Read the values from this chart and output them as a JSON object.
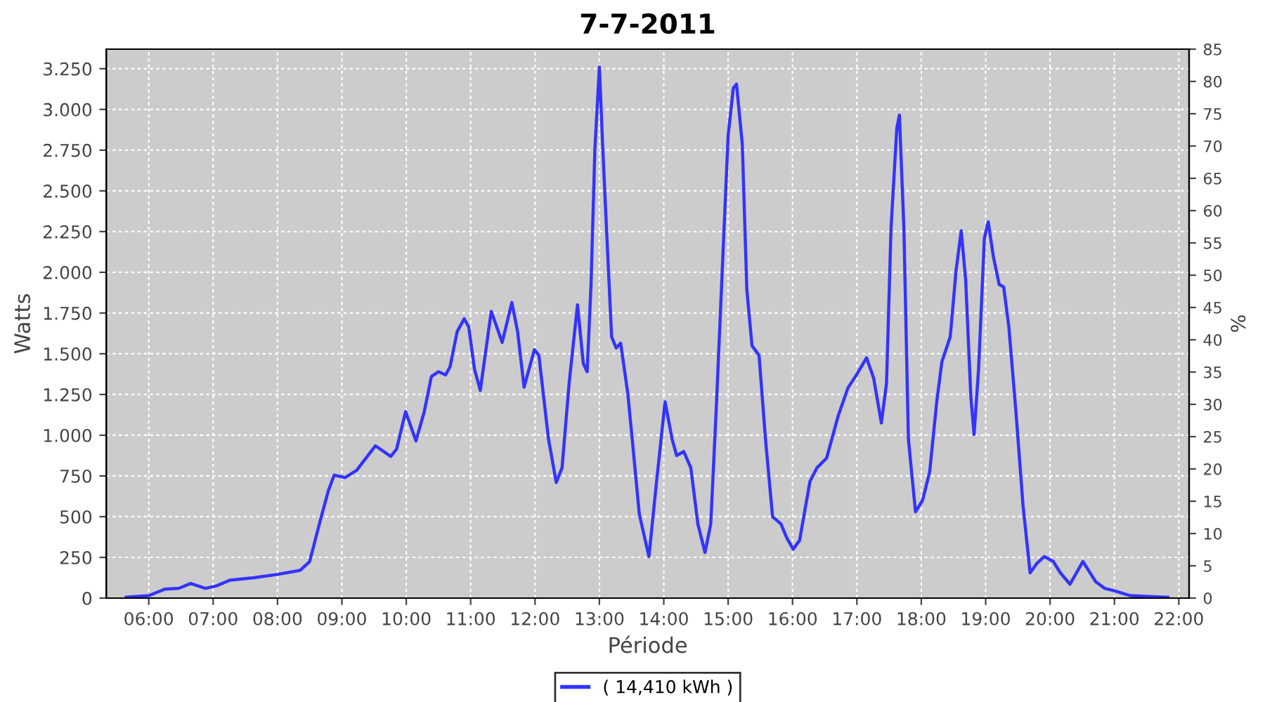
{
  "chart_data": {
    "type": "line",
    "title": "7-7-2011",
    "xlabel": "Période",
    "ylabel": "Watts",
    "y2label": "%",
    "xlim": [
      5.34,
      22.16
    ],
    "xticks": [
      {
        "value": 6,
        "label": "06:00"
      },
      {
        "value": 7,
        "label": "07:00"
      },
      {
        "value": 8,
        "label": "08:00"
      },
      {
        "value": 9,
        "label": "09:00"
      },
      {
        "value": 10,
        "label": "10:00"
      },
      {
        "value": 11,
        "label": "11:00"
      },
      {
        "value": 12,
        "label": "12:00"
      },
      {
        "value": 13,
        "label": "13:00"
      },
      {
        "value": 14,
        "label": "14:00"
      },
      {
        "value": 15,
        "label": "15:00"
      },
      {
        "value": 16,
        "label": "16:00"
      },
      {
        "value": 17,
        "label": "17:00"
      },
      {
        "value": 18,
        "label": "18:00"
      },
      {
        "value": 19,
        "label": "19:00"
      },
      {
        "value": 20,
        "label": "20:00"
      },
      {
        "value": 21,
        "label": "21:00"
      },
      {
        "value": 22,
        "label": "22:00"
      }
    ],
    "ylim": [
      0,
      3370
    ],
    "yticks": [
      0,
      250,
      500,
      750,
      {
        "value": 1000,
        "label": "1.000"
      },
      {
        "value": 1250,
        "label": "1.250"
      },
      {
        "value": 1500,
        "label": "1.500"
      },
      {
        "value": 1750,
        "label": "1.750"
      },
      {
        "value": 2000,
        "label": "2.000"
      },
      {
        "value": 2250,
        "label": "2.250"
      },
      {
        "value": 2500,
        "label": "2.500"
      },
      {
        "value": 2750,
        "label": "2.750"
      },
      {
        "value": 3000,
        "label": "3.000"
      },
      {
        "value": 3250,
        "label": "3.250"
      }
    ],
    "y2lim": [
      0,
      85
    ],
    "y2ticks": [
      0,
      5,
      10,
      15,
      20,
      25,
      30,
      35,
      40,
      45,
      50,
      55,
      60,
      65,
      70,
      75,
      80,
      85
    ],
    "grid": true,
    "legend": "bottom",
    "series": [
      {
        "name": "( 14,410 kWh )",
        "color": "#3333ff",
        "x": [
          5.65,
          6.0,
          6.25,
          6.47,
          6.65,
          6.88,
          7.05,
          7.26,
          7.63,
          7.99,
          8.35,
          8.5,
          8.65,
          8.79,
          8.88,
          9.05,
          9.23,
          9.52,
          9.76,
          9.85,
          9.99,
          10.15,
          10.28,
          10.39,
          10.5,
          10.61,
          10.68,
          10.79,
          10.9,
          10.97,
          11.06,
          11.15,
          11.32,
          11.49,
          11.64,
          11.73,
          11.83,
          11.99,
          12.06,
          12.21,
          12.33,
          12.42,
          12.53,
          12.66,
          12.75,
          12.81,
          12.87,
          12.93,
          13.0,
          13.05,
          13.11,
          13.19,
          13.26,
          13.33,
          13.44,
          13.51,
          13.62,
          13.77,
          13.88,
          14.02,
          14.13,
          14.2,
          14.31,
          14.42,
          14.53,
          14.64,
          14.73,
          14.82,
          14.93,
          15.0,
          15.08,
          15.13,
          15.22,
          15.29,
          15.37,
          15.48,
          15.58,
          15.69,
          15.82,
          15.91,
          16.01,
          16.11,
          16.27,
          16.38,
          16.53,
          16.71,
          16.86,
          17.0,
          17.15,
          17.26,
          17.38,
          17.46,
          17.53,
          17.62,
          17.66,
          17.73,
          17.8,
          17.91,
          18.02,
          18.13,
          18.24,
          18.32,
          18.45,
          18.54,
          18.62,
          18.69,
          18.77,
          18.82,
          18.89,
          18.98,
          19.04,
          19.12,
          19.21,
          19.28,
          19.36,
          19.47,
          19.58,
          19.69,
          19.8,
          19.91,
          20.05,
          20.16,
          20.31,
          20.51,
          20.71,
          20.85,
          21.0,
          21.25,
          21.54,
          21.83
        ],
        "values": [
          5,
          15,
          55,
          60,
          90,
          60,
          75,
          110,
          125,
          145,
          170,
          225,
          455,
          660,
          755,
          740,
          785,
          935,
          870,
          915,
          1145,
          965,
          1145,
          1360,
          1390,
          1370,
          1420,
          1635,
          1715,
          1665,
          1405,
          1275,
          1760,
          1570,
          1815,
          1635,
          1295,
          1525,
          1490,
          975,
          710,
          800,
          1320,
          1800,
          1440,
          1390,
          1925,
          2755,
          3260,
          2785,
          2270,
          1605,
          1535,
          1565,
          1260,
          975,
          515,
          255,
          685,
          1205,
          975,
          875,
          900,
          800,
          455,
          280,
          455,
          1205,
          2210,
          2840,
          3130,
          3155,
          2785,
          1895,
          1550,
          1490,
          975,
          500,
          455,
          370,
          300,
          355,
          715,
          800,
          860,
          1120,
          1290,
          1375,
          1475,
          1350,
          1075,
          1320,
          2270,
          2885,
          2965,
          2270,
          975,
          530,
          600,
          775,
          1205,
          1450,
          1605,
          2010,
          2255,
          1950,
          1235,
          1005,
          1405,
          2210,
          2310,
          2095,
          1925,
          1910,
          1665,
          1145,
          570,
          155,
          215,
          255,
          225,
          155,
          85,
          225,
          100,
          60,
          45,
          15,
          10,
          5
        ]
      }
    ]
  }
}
